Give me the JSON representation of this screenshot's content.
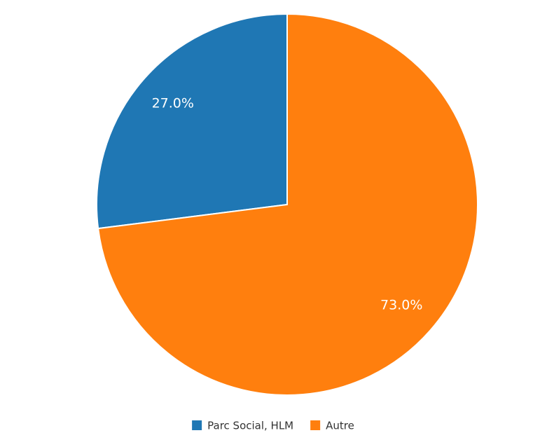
{
  "chart_data": {
    "type": "pie",
    "categories": [
      "Parc Social, HLM",
      "Autre"
    ],
    "values": [
      27,
      73
    ],
    "value_labels": [
      "27.0%",
      "73.0%"
    ],
    "colors": [
      "#1f77b4",
      "#ff7f0e"
    ]
  }
}
